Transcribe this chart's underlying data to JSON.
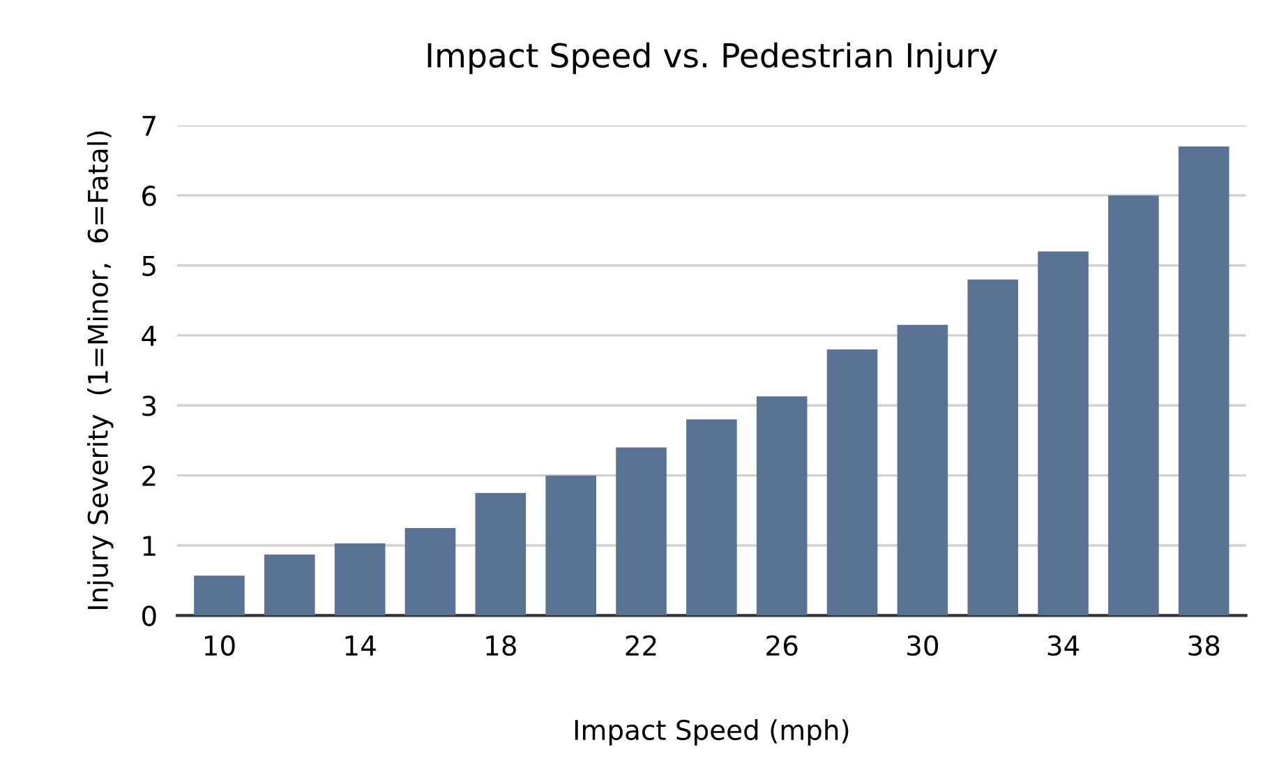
{
  "chart_data": {
    "type": "bar",
    "title": "Impact Speed vs. Pedestrian Injury",
    "xlabel": "Impact Speed (mph)",
    "ylabel": "Injury Severity  (1=Minor,  6=Fatal)",
    "categories": [
      "10",
      null,
      "14",
      null,
      "18",
      null,
      "22",
      null,
      "26",
      null,
      "30",
      null,
      "34",
      null,
      "38"
    ],
    "values": [
      0.57,
      0.87,
      1.03,
      1.25,
      1.75,
      2.0,
      2.4,
      2.8,
      3.13,
      3.8,
      4.15,
      4.8,
      5.2,
      6.0,
      6.7
    ],
    "color": "#5a7394",
    "ylim": [
      0,
      7
    ],
    "yticks": [
      0,
      1,
      2,
      3,
      4,
      5,
      6,
      7
    ],
    "grid": "y"
  }
}
